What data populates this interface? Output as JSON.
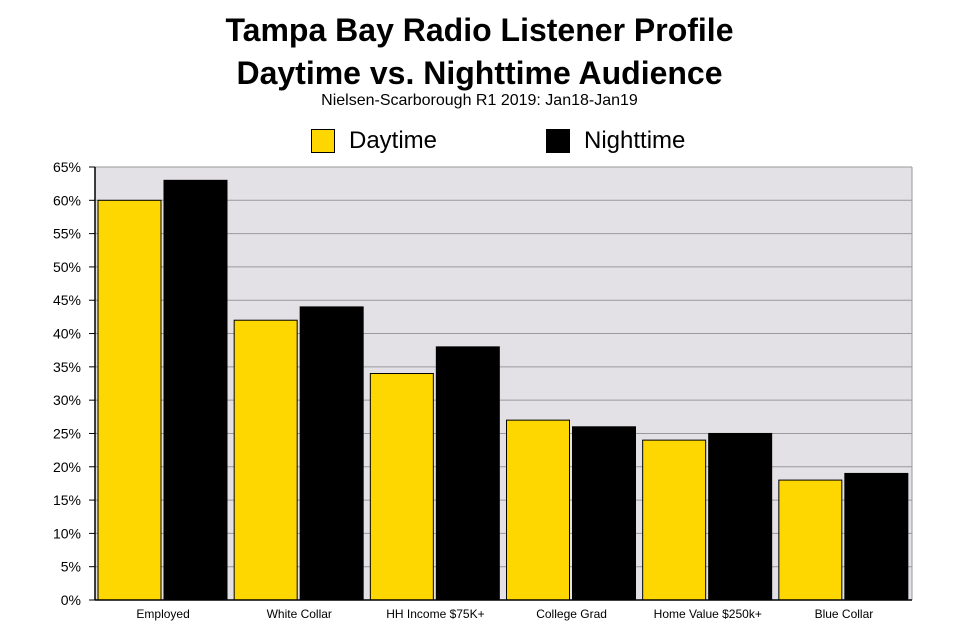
{
  "chart_data": {
    "type": "bar",
    "title_lines": [
      "Tampa Bay Radio Listener Profile",
      "Daytime vs. Nighttime Audience"
    ],
    "subtitle": "Nielsen-Scarborough R1 2019: Jan18-Jan19",
    "categories": [
      "Employed",
      "White Collar",
      "HH Income $75K+",
      "College Grad",
      "Home Value $250k+",
      "Blue Collar"
    ],
    "series": [
      {
        "name": "Daytime",
        "color": "#FFD700",
        "values": [
          60,
          42,
          34,
          27,
          24,
          18
        ]
      },
      {
        "name": "Nighttime",
        "color": "#000000",
        "values": [
          63,
          44,
          38,
          26,
          25,
          19
        ]
      }
    ],
    "y_ticks": [
      "0%",
      "5%",
      "10%",
      "15%",
      "20%",
      "25%",
      "30%",
      "35%",
      "40%",
      "45%",
      "50%",
      "55%",
      "60%",
      "65%"
    ],
    "ylim": [
      0,
      65
    ],
    "grid": true,
    "legend_position": "top-center",
    "plot_background": "#E3E1E6"
  }
}
